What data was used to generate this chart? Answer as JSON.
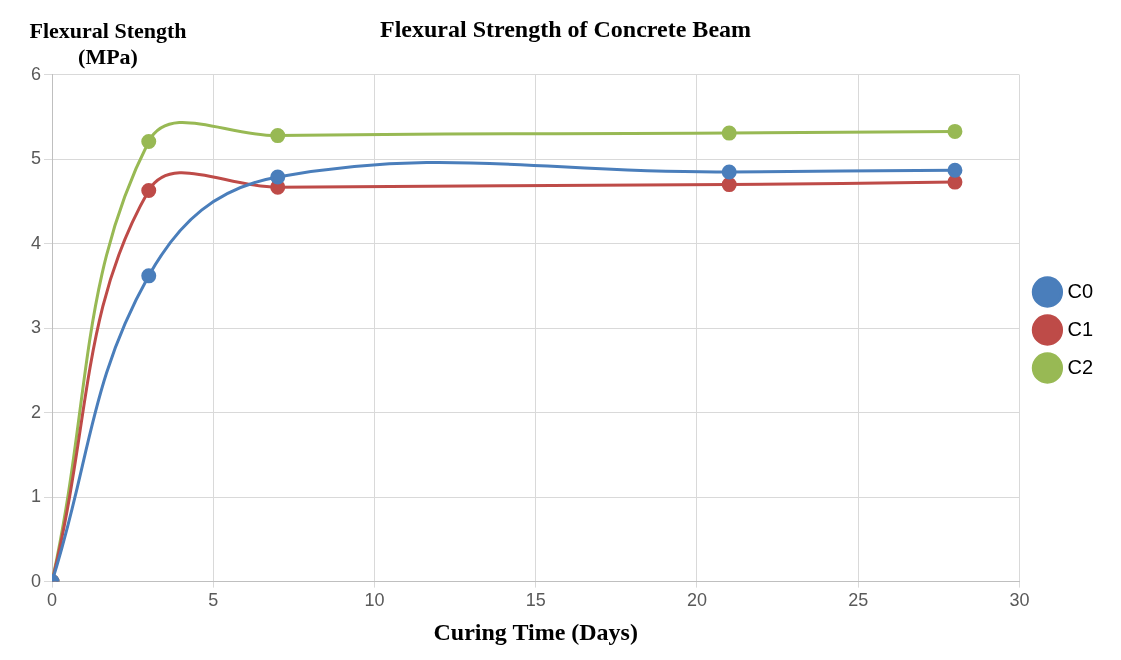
{
  "chart_data": {
    "type": "line",
    "title": "Flexural Strength of Concrete Beam",
    "xlabel": "Curing Time (Days)",
    "ylabel": "Flexural Stength (MPa)",
    "x": [
      0,
      3,
      7,
      21,
      28
    ],
    "series": [
      {
        "name": "C0",
        "color": "#4a7ebb",
        "values": [
          0,
          3.62,
          4.79,
          4.85,
          4.87
        ]
      },
      {
        "name": "C1",
        "color": "#be4b48",
        "values": [
          0,
          4.63,
          4.67,
          4.7,
          4.73
        ]
      },
      {
        "name": "C2",
        "color": "#98b954",
        "values": [
          0,
          5.21,
          5.28,
          5.31,
          5.33
        ]
      }
    ],
    "xlim": [
      0,
      30
    ],
    "xticks": [
      0,
      5,
      10,
      15,
      20,
      25,
      30
    ],
    "ylim": [
      0,
      6
    ],
    "yticks": [
      0,
      1,
      2,
      3,
      4,
      5,
      6
    ],
    "grid": true,
    "legend": "right",
    "marker": "circle",
    "line_style": "solid"
  }
}
